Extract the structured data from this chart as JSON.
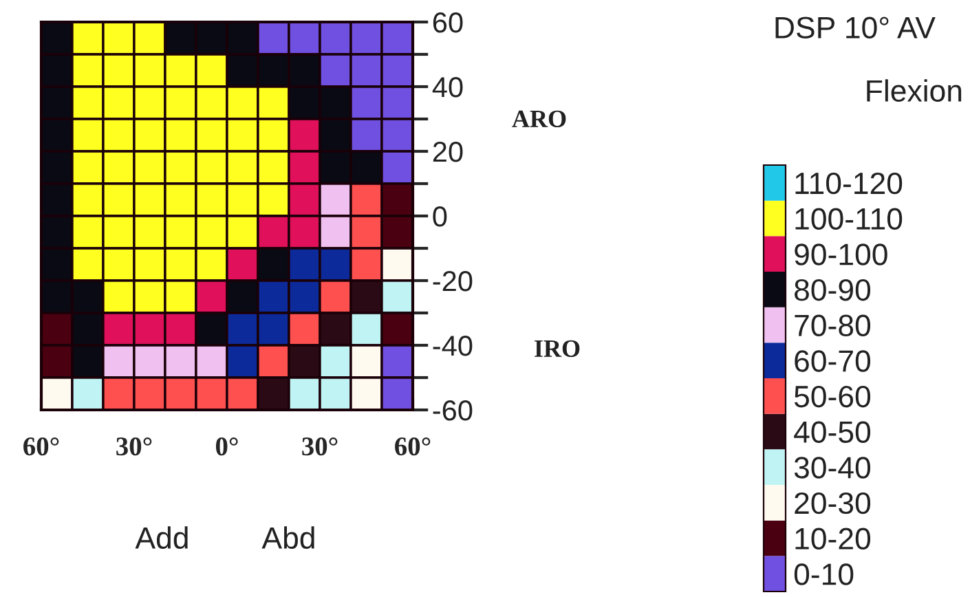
{
  "chart_data": {
    "type": "heatmap",
    "title": "DSP 10° AV",
    "subtitle": "Flexion",
    "annotations": [
      "ARO",
      "IRO",
      "Add",
      "Abd"
    ],
    "xlim": [
      -60,
      60
    ],
    "xticks": [
      {
        "value": -60,
        "label": "60°"
      },
      {
        "value": -50,
        "label": null
      },
      {
        "value": -40,
        "label": null
      },
      {
        "value": -30,
        "label": "30°"
      },
      {
        "value": -20,
        "label": null
      },
      {
        "value": -10,
        "label": null
      },
      {
        "value": 0,
        "label": "0°"
      },
      {
        "value": 10,
        "label": null
      },
      {
        "value": 20,
        "label": null
      },
      {
        "value": 30,
        "label": "30°"
      },
      {
        "value": 40,
        "label": null
      },
      {
        "value": 50,
        "label": null
      },
      {
        "value": 60,
        "label": "60°"
      }
    ],
    "ylim": [
      -60,
      60
    ],
    "yticks": [
      -60,
      {
        "value": -50,
        "label": null
      },
      -40,
      {
        "value": -30,
        "label": null
      },
      -20,
      {
        "value": -10,
        "label": null
      },
      0,
      {
        "value": 10,
        "label": null
      },
      20,
      {
        "value": 30,
        "label": null
      },
      40,
      {
        "value": 50,
        "label": null
      },
      60
    ],
    "cells": [
      [
        85,
        105,
        105,
        105,
        85,
        85,
        85,
        5,
        5,
        5,
        5,
        5
      ],
      [
        85,
        105,
        105,
        105,
        105,
        105,
        85,
        85,
        85,
        5,
        5,
        5
      ],
      [
        85,
        105,
        105,
        105,
        105,
        105,
        105,
        105,
        85,
        85,
        5,
        5
      ],
      [
        85,
        105,
        105,
        105,
        105,
        105,
        105,
        105,
        95,
        85,
        5,
        5
      ],
      [
        85,
        105,
        105,
        105,
        105,
        105,
        105,
        105,
        95,
        85,
        85,
        5
      ],
      [
        85,
        105,
        105,
        105,
        105,
        105,
        105,
        105,
        95,
        75,
        55,
        15
      ],
      [
        85,
        105,
        105,
        105,
        105,
        105,
        105,
        95,
        95,
        75,
        55,
        15
      ],
      [
        85,
        105,
        105,
        105,
        105,
        105,
        95,
        85,
        65,
        65,
        55,
        25
      ],
      [
        85,
        85,
        105,
        105,
        105,
        95,
        85,
        65,
        65,
        55,
        45,
        35
      ],
      [
        15,
        85,
        95,
        95,
        95,
        85,
        65,
        65,
        55,
        45,
        35,
        15
      ],
      [
        15,
        85,
        75,
        75,
        75,
        75,
        65,
        55,
        45,
        35,
        25,
        5
      ],
      [
        25,
        35,
        55,
        55,
        55,
        55,
        55,
        45,
        35,
        35,
        25,
        5
      ]
    ],
    "clim": [
      0,
      120
    ],
    "colors": [
      "#7050e0",
      "#4a0010",
      "#fffaf0",
      "#c0f4f4",
      "#2a0a14",
      "#ff5050",
      "#0c2a9a",
      "#f0c0f0",
      "#0a0a14",
      "#e0105a",
      "#ffff20",
      "#22c8e8"
    ],
    "cticks": [
      {
        "value": 5,
        "label": "0-10"
      },
      {
        "value": 15,
        "label": "10-20"
      },
      {
        "value": 25,
        "label": "20-30"
      },
      {
        "value": 35,
        "label": "30-40"
      },
      {
        "value": 45,
        "label": "40-50"
      },
      {
        "value": 55,
        "label": "50-60"
      },
      {
        "value": 65,
        "label": "60-70"
      },
      {
        "value": 75,
        "label": "70-80"
      },
      {
        "value": 85,
        "label": "80-90"
      },
      {
        "value": 95,
        "label": "90-100"
      },
      {
        "value": 105,
        "label": "100-110"
      },
      {
        "value": 115,
        "label": "110-120"
      }
    ],
    "legend": false
  }
}
